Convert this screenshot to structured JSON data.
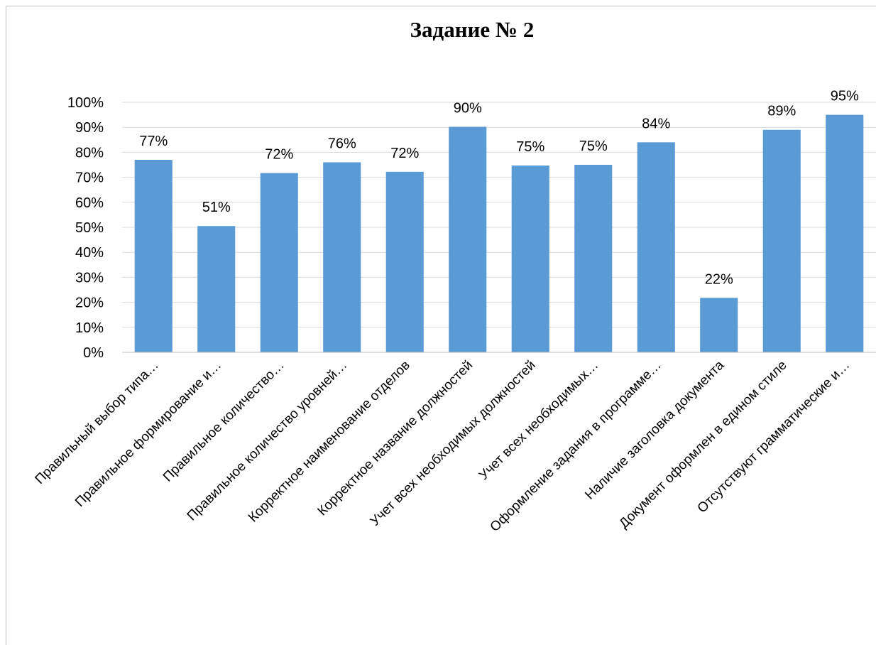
{
  "chart_data": {
    "type": "bar",
    "title": "Задание № 2",
    "xlabel": "",
    "ylabel": "",
    "ylim": [
      0,
      1
    ],
    "yticks": [
      "0%",
      "10%",
      "20%",
      "30%",
      "40%",
      "50%",
      "60%",
      "70%",
      "80%",
      "90%",
      "100%"
    ],
    "grid": true,
    "legend": "none",
    "bar_color": "#5b9bd5",
    "categories": [
      "Правильный выбор типа…",
      "Правильное формирование и…",
      "Правильное количество…",
      "Правильное количество уровней…",
      "Корректное наименование отделов",
      "Корректное название должностей",
      "Учет всех необходимых должностей",
      "Учет всех необходимых…",
      "Оформление задания в программе…",
      "Наличие заголовка документа",
      "Документ оформлен в едином стиле",
      "Отсутствуют грамматические и…"
    ],
    "values": [
      0.77,
      0.505,
      0.717,
      0.76,
      0.722,
      0.902,
      0.747,
      0.75,
      0.84,
      0.218,
      0.89,
      0.95
    ],
    "data_labels": [
      "77%",
      "51%",
      "72%",
      "76%",
      "72%",
      "90%",
      "75%",
      "75%",
      "84%",
      "22%",
      "89%",
      "95%"
    ]
  }
}
